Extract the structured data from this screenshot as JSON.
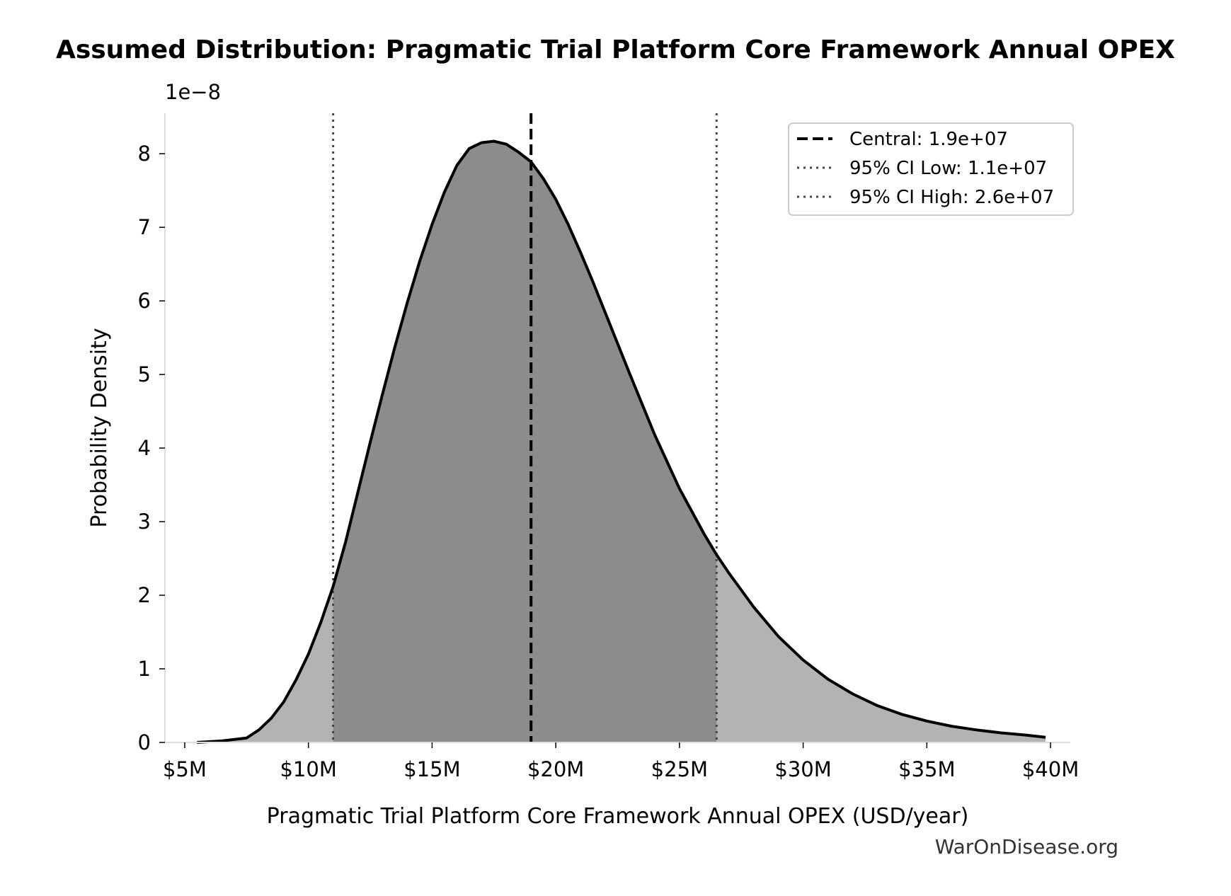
{
  "chart_data": {
    "type": "area",
    "title": "Assumed Distribution: Pragmatic Trial Platform Core Framework Annual OPEX",
    "xlabel": "Pragmatic Trial Platform Core Framework Annual OPEX (USD/year)",
    "ylabel": "Probability Density",
    "y_offset_label": "1e−8",
    "y_scale_factor": 1e-08,
    "xlim": [
      4.2,
      40.8
    ],
    "ylim": [
      0,
      8.55
    ],
    "x_unit": "USD millions",
    "x_ticks": [
      5,
      10,
      15,
      20,
      25,
      30,
      35,
      40
    ],
    "x_tick_labels": [
      "$5M",
      "$10M",
      "$15M",
      "$20M",
      "$25M",
      "$30M",
      "$35M",
      "$40M"
    ],
    "y_ticks": [
      0,
      1,
      2,
      3,
      4,
      5,
      6,
      7,
      8
    ],
    "y_tick_labels": [
      "0",
      "1",
      "2",
      "3",
      "4",
      "5",
      "6",
      "7",
      "8"
    ],
    "grid": false,
    "legend_position": "top-right",
    "series": [
      {
        "kind": "density",
        "x": [
          5.5,
          6.5,
          7.5,
          8,
          8.5,
          9,
          9.5,
          10,
          10.5,
          11,
          11.5,
          12,
          12.5,
          13,
          13.5,
          14,
          14.5,
          15,
          15.5,
          16,
          16.5,
          17,
          17.5,
          18,
          18.5,
          19,
          19.5,
          20,
          20.5,
          21,
          21.5,
          22,
          23,
          24,
          25,
          26,
          26.5,
          27,
          28,
          29,
          30,
          31,
          32,
          33,
          34,
          35,
          36,
          37,
          38,
          39,
          39.8
        ],
        "y": [
          0.0,
          0.02,
          0.06,
          0.17,
          0.33,
          0.55,
          0.85,
          1.2,
          1.63,
          2.12,
          2.72,
          3.4,
          4.08,
          4.74,
          5.38,
          5.98,
          6.54,
          7.04,
          7.48,
          7.84,
          8.07,
          8.15,
          8.17,
          8.13,
          8.02,
          7.89,
          7.66,
          7.38,
          7.04,
          6.66,
          6.26,
          5.84,
          5.0,
          4.18,
          3.45,
          2.83,
          2.55,
          2.3,
          1.84,
          1.44,
          1.12,
          0.86,
          0.66,
          0.5,
          0.38,
          0.29,
          0.22,
          0.17,
          0.13,
          0.1,
          0.07
        ]
      }
    ],
    "ci_shade": {
      "low": 11.0,
      "high": 26.5
    },
    "colors": {
      "curve": "#000000",
      "fill_outer": "#b3b3b3",
      "fill_inner": "#8c8c8c",
      "central_line": "#000000",
      "ci_lines": "#444444"
    },
    "vlines": [
      {
        "x": 19.0,
        "style": "dashed",
        "label": "Central: 1.9e+07"
      },
      {
        "x": 11.0,
        "style": "dotted",
        "label": "95% CI Low: 1.1e+07"
      },
      {
        "x": 26.5,
        "style": "dotted",
        "label": "95% CI High: 2.6e+07"
      }
    ],
    "legend": [
      {
        "label": "Central: 1.9e+07",
        "style": "dashed"
      },
      {
        "label": "95% CI Low: 1.1e+07",
        "style": "dotted"
      },
      {
        "label": "95% CI High: 2.6e+07",
        "style": "dotted"
      }
    ]
  },
  "watermark": "WarOnDisease.org"
}
